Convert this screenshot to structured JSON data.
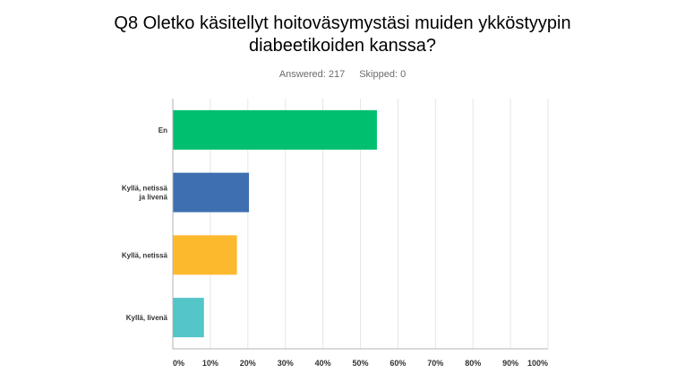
{
  "question": {
    "title_line1": "Q8 Oletko käsitellyt hoitoväsymystäsi muiden ykköstyypin",
    "title_line2": "diabeetikoiden kanssa?",
    "answered": "Answered: 217",
    "skipped": "Skipped: 0"
  },
  "chart_data": {
    "type": "bar",
    "orientation": "horizontal",
    "categories": [
      [
        "En"
      ],
      [
        "Kyllä, netissä",
        "ja livenä"
      ],
      [
        "Kyllä, netissä"
      ],
      [
        "Kyllä, livenä"
      ]
    ],
    "values": [
      54.4,
      20.3,
      17.1,
      8.3
    ],
    "colors": [
      "#00bf6f",
      "#3e6fb0",
      "#fdb92d",
      "#54c5c8"
    ],
    "xlim": [
      0,
      100
    ],
    "ticks": [
      "0%",
      "10%",
      "20%",
      "30%",
      "40%",
      "50%",
      "60%",
      "70%",
      "80%",
      "90%",
      "100%"
    ],
    "grid": true
  }
}
